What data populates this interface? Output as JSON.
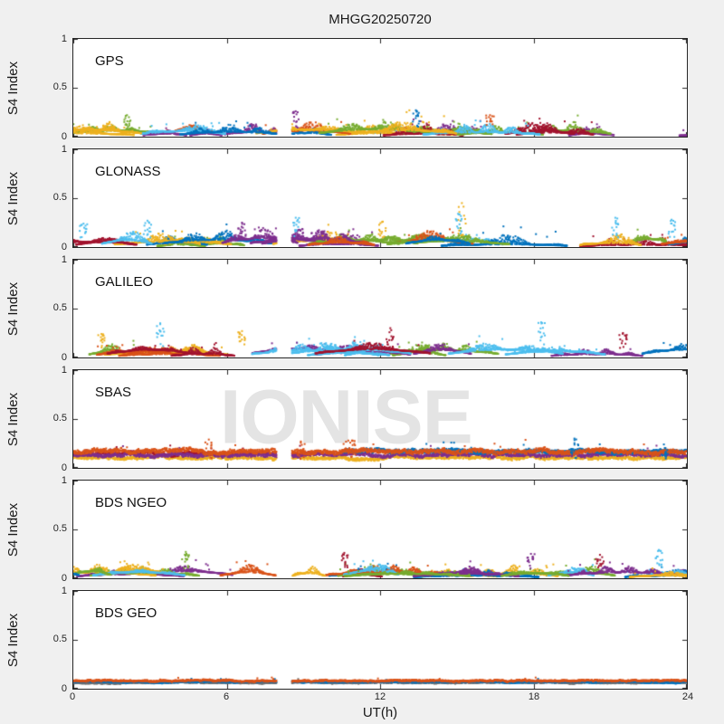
{
  "colors": {
    "figure_bg": "#f0f0f0",
    "panel_bg": "#ffffff",
    "axis": "#262626",
    "watermark": "#e4e4e4"
  },
  "chart_data": {
    "type": "scatter",
    "title": "MHGG20250720",
    "xlabel": "UT(h)",
    "ylabel": "S4 Index",
    "watermark": "IONISE",
    "xlim": [
      0,
      24
    ],
    "ylim": [
      0,
      1
    ],
    "xticks": [
      0,
      6,
      12,
      18,
      24
    ],
    "yticks": [
      0,
      0.5,
      1
    ],
    "xtick_labels": [
      "0",
      "6",
      "12",
      "18",
      "24"
    ],
    "ytick_labels": [
      "0",
      "0.5",
      "1"
    ],
    "grid": false,
    "legend": "none",
    "data_gap_ut": [
      7.95,
      8.55
    ],
    "marker_colors": [
      "#0072BD",
      "#D95319",
      "#EDB120",
      "#7E2F8E",
      "#77AC30",
      "#4DBEEE",
      "#A2142F"
    ],
    "panels": [
      {
        "id": "gps",
        "label": "GPS",
        "type": "arcs",
        "seed": 11,
        "n_arcs": 30,
        "base_min": 0.02,
        "base_max": 0.07,
        "amp_min": 0.03,
        "amp_max": 0.11,
        "vmax": 0.27,
        "spikes": [
          {
            "x": 2.1,
            "y": 0.22,
            "c": 4
          },
          {
            "x": 8.7,
            "y": 0.26,
            "c": 3
          },
          {
            "x": 13.4,
            "y": 0.27,
            "c": 0
          },
          {
            "x": 16.3,
            "y": 0.22,
            "c": 1
          }
        ]
      },
      {
        "id": "glonass",
        "label": "GLONASS",
        "type": "arcs",
        "seed": 22,
        "n_arcs": 28,
        "base_min": 0.02,
        "base_max": 0.08,
        "amp_min": 0.04,
        "amp_max": 0.13,
        "vmax": 0.3,
        "spikes": [
          {
            "x": 0.4,
            "y": 0.24,
            "c": 5
          },
          {
            "x": 2.9,
            "y": 0.27,
            "c": 5
          },
          {
            "x": 6.6,
            "y": 0.25,
            "c": 3
          },
          {
            "x": 8.7,
            "y": 0.3,
            "c": 5
          },
          {
            "x": 12.1,
            "y": 0.26,
            "c": 2
          },
          {
            "x": 15.2,
            "y": 0.45,
            "c": 2
          },
          {
            "x": 15.05,
            "y": 0.34,
            "c": 5
          },
          {
            "x": 21.2,
            "y": 0.3,
            "c": 5
          },
          {
            "x": 23.4,
            "y": 0.28,
            "c": 5
          }
        ]
      },
      {
        "id": "galileo",
        "label": "GALILEO",
        "type": "arcs",
        "seed": 33,
        "n_arcs": 24,
        "base_min": 0.03,
        "base_max": 0.08,
        "amp_min": 0.03,
        "amp_max": 0.1,
        "vmax": 0.25,
        "spikes": [
          {
            "x": 1.1,
            "y": 0.24,
            "c": 2
          },
          {
            "x": 3.4,
            "y": 0.35,
            "c": 5
          },
          {
            "x": 6.6,
            "y": 0.27,
            "c": 2
          },
          {
            "x": 12.4,
            "y": 0.3,
            "c": 6
          },
          {
            "x": 18.3,
            "y": 0.36,
            "c": 5
          },
          {
            "x": 21.5,
            "y": 0.25,
            "c": 6
          }
        ]
      },
      {
        "id": "sbas",
        "label": "SBAS",
        "type": "lines",
        "seed": 44,
        "lines": [
          {
            "color": "#EDB120",
            "y": 0.105,
            "x0": 0,
            "x1": 24,
            "jitter": 0.028
          },
          {
            "color": "#A2142F",
            "y": 0.148,
            "x0": 0,
            "x1": 9.5,
            "jitter": 0.03
          },
          {
            "color": "#7E2F8E",
            "y": 0.132,
            "x0": 0,
            "x1": 24,
            "jitter": 0.032
          },
          {
            "color": "#0072BD",
            "y": 0.168,
            "x0": 10.5,
            "x1": 24,
            "jitter": 0.035
          },
          {
            "color": "#D95319",
            "y": 0.165,
            "x0": 0,
            "x1": 24,
            "jitter": 0.038
          }
        ],
        "spikes": [
          {
            "x": 5.3,
            "y": 0.29,
            "c": 1
          },
          {
            "x": 8.9,
            "y": 0.27,
            "c": 1
          },
          {
            "x": 10.9,
            "y": 0.28,
            "c": 1
          },
          {
            "x": 19.6,
            "y": 0.3,
            "c": 0
          },
          {
            "x": 23.1,
            "y": 0.24,
            "c": 0
          }
        ]
      },
      {
        "id": "bds-ngeo",
        "label": "BDS NGEO",
        "type": "arcs",
        "seed": 55,
        "n_arcs": 30,
        "base_min": 0.02,
        "base_max": 0.07,
        "amp_min": 0.03,
        "amp_max": 0.1,
        "vmax": 0.25,
        "spikes": [
          {
            "x": 4.4,
            "y": 0.27,
            "c": 4
          },
          {
            "x": 8.4,
            "y": 0.3,
            "c": 3
          },
          {
            "x": 10.6,
            "y": 0.26,
            "c": 6
          },
          {
            "x": 17.9,
            "y": 0.25,
            "c": 3
          },
          {
            "x": 20.6,
            "y": 0.24,
            "c": 6
          },
          {
            "x": 22.9,
            "y": 0.29,
            "c": 5
          }
        ]
      },
      {
        "id": "bds-geo",
        "label": "BDS GEO",
        "type": "lines",
        "seed": 66,
        "lines": [
          {
            "color": "#6E6E6E",
            "y": 0.062,
            "x0": 0,
            "x1": 24,
            "jitter": 0.012
          },
          {
            "color": "#0072BD",
            "y": 0.07,
            "x0": 0,
            "x1": 24,
            "jitter": 0.012
          },
          {
            "color": "#D95319",
            "y": 0.082,
            "x0": 0,
            "x1": 24,
            "jitter": 0.014
          }
        ],
        "spikes": []
      }
    ]
  }
}
